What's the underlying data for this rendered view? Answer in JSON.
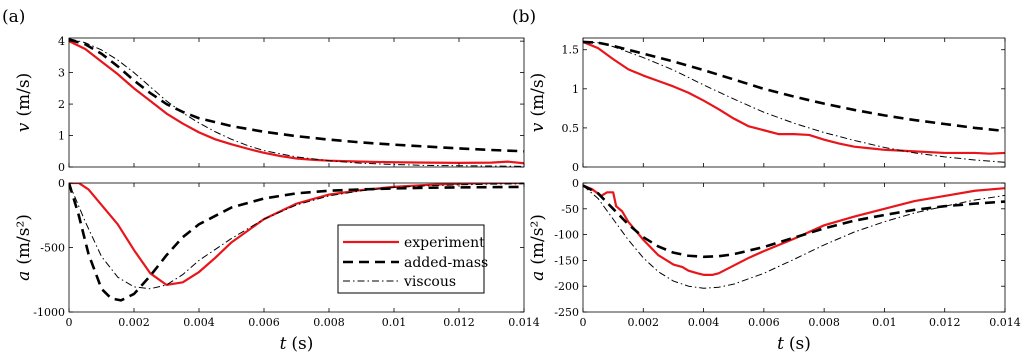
{
  "figure": {
    "panel_labels": [
      "(a)",
      "(b)"
    ],
    "legend": {
      "entries": [
        {
          "label": "experiment",
          "style": "solid",
          "color": "#e8161b"
        },
        {
          "label": "added-mass",
          "style": "dashed",
          "color": "#000000"
        },
        {
          "label": "viscous",
          "style": "dashdot",
          "color": "#000000"
        }
      ],
      "placement": "inside bottom-right of panel (a) acceleration plot"
    }
  },
  "chart_data": [
    {
      "id": "a_velocity",
      "panel": "(a)",
      "type": "line",
      "ylabel_var": "v",
      "ylabel_unit": "(m/s)",
      "xlabel_var": "",
      "xlabel_unit": "",
      "xlim": [
        0,
        0.014
      ],
      "ylim": [
        0,
        4.1
      ],
      "xticks": [
        0,
        0.002,
        0.004,
        0.006,
        0.008,
        0.01,
        0.012,
        0.014
      ],
      "xticklabels": [],
      "yticks": [
        0,
        1,
        2,
        3,
        4
      ],
      "yticklabels": [
        "0",
        "1",
        "2",
        "3",
        "4"
      ],
      "grid": false,
      "series": [
        {
          "name": "experiment",
          "color": "#e8161b",
          "style": "solid",
          "x": [
            0,
            0.0005,
            0.001,
            0.0015,
            0.002,
            0.0025,
            0.003,
            0.0035,
            0.004,
            0.0045,
            0.005,
            0.0055,
            0.006,
            0.0065,
            0.007,
            0.0075,
            0.008,
            0.009,
            0.01,
            0.011,
            0.012,
            0.013,
            0.0135,
            0.014
          ],
          "y": [
            4.0,
            3.75,
            3.35,
            2.95,
            2.5,
            2.1,
            1.7,
            1.38,
            1.1,
            0.88,
            0.72,
            0.58,
            0.45,
            0.35,
            0.27,
            0.23,
            0.2,
            0.17,
            0.15,
            0.14,
            0.13,
            0.14,
            0.17,
            0.12
          ]
        },
        {
          "name": "added-mass",
          "color": "#000000",
          "style": "dashed",
          "x": [
            0,
            0.0005,
            0.001,
            0.0015,
            0.002,
            0.0025,
            0.003,
            0.0035,
            0.004,
            0.005,
            0.006,
            0.007,
            0.008,
            0.009,
            0.01,
            0.011,
            0.012,
            0.013,
            0.014
          ],
          "y": [
            4.05,
            3.9,
            3.6,
            3.2,
            2.75,
            2.35,
            2.0,
            1.75,
            1.55,
            1.3,
            1.12,
            0.98,
            0.87,
            0.78,
            0.71,
            0.65,
            0.59,
            0.54,
            0.5
          ]
        },
        {
          "name": "viscous",
          "color": "#000000",
          "style": "dashdot",
          "x": [
            0,
            0.0005,
            0.001,
            0.0015,
            0.002,
            0.0025,
            0.003,
            0.0035,
            0.004,
            0.0045,
            0.005,
            0.0055,
            0.006,
            0.007,
            0.008,
            0.009,
            0.01,
            0.011,
            0.012,
            0.013,
            0.014
          ],
          "y": [
            4.08,
            3.95,
            3.72,
            3.4,
            3.0,
            2.55,
            2.1,
            1.72,
            1.4,
            1.12,
            0.88,
            0.68,
            0.52,
            0.32,
            0.2,
            0.12,
            0.08,
            0.05,
            0.04,
            0.03,
            0.02
          ]
        }
      ]
    },
    {
      "id": "a_acceleration",
      "panel": "(a)",
      "type": "line",
      "ylabel_var": "a",
      "ylabel_unit": "(m/s²)",
      "xlabel_var": "t",
      "xlabel_unit": "(s)",
      "xlim": [
        0,
        0.014
      ],
      "ylim": [
        -1000,
        0
      ],
      "xticks": [
        0,
        0.002,
        0.004,
        0.006,
        0.008,
        0.01,
        0.012,
        0.014
      ],
      "xticklabels": [
        "0",
        "0.002",
        "0.004",
        "0.006",
        "0.008",
        "0.01",
        "0.012",
        "0.014"
      ],
      "yticks": [
        -1000,
        -500,
        0
      ],
      "yticklabels": [
        "-1000",
        "-500",
        "0"
      ],
      "grid": false,
      "series": [
        {
          "name": "experiment",
          "color": "#e8161b",
          "style": "solid",
          "x": [
            0,
            0.0003,
            0.0006,
            0.001,
            0.0015,
            0.002,
            0.0025,
            0.003,
            0.0035,
            0.004,
            0.0045,
            0.005,
            0.006,
            0.007,
            0.008,
            0.009,
            0.01,
            0.011,
            0.012,
            0.013,
            0.014
          ],
          "y": [
            0,
            0,
            -50,
            -170,
            -320,
            -520,
            -700,
            -790,
            -770,
            -690,
            -580,
            -460,
            -280,
            -160,
            -90,
            -55,
            -30,
            -15,
            -5,
            0,
            0
          ]
        },
        {
          "name": "added-mass",
          "color": "#000000",
          "style": "dashed",
          "x": [
            0,
            0.0003,
            0.0006,
            0.001,
            0.0013,
            0.0016,
            0.002,
            0.0025,
            0.003,
            0.0035,
            0.004,
            0.005,
            0.006,
            0.007,
            0.008,
            0.009,
            0.01,
            0.011,
            0.012,
            0.013,
            0.014
          ],
          "y": [
            0,
            -250,
            -550,
            -820,
            -895,
            -910,
            -860,
            -720,
            -560,
            -420,
            -320,
            -190,
            -120,
            -80,
            -60,
            -50,
            -42,
            -37,
            -34,
            -32,
            -30
          ]
        },
        {
          "name": "viscous",
          "color": "#000000",
          "style": "dashdot",
          "x": [
            0,
            0.0005,
            0.001,
            0.0015,
            0.002,
            0.0025,
            0.003,
            0.0035,
            0.004,
            0.005,
            0.006,
            0.007,
            0.008,
            0.009,
            0.01,
            0.011,
            0.012,
            0.013,
            0.014
          ],
          "y": [
            0,
            -300,
            -570,
            -730,
            -805,
            -820,
            -790,
            -710,
            -600,
            -430,
            -280,
            -170,
            -100,
            -60,
            -35,
            -22,
            -14,
            -9,
            -6
          ]
        }
      ]
    },
    {
      "id": "b_velocity",
      "panel": "(b)",
      "type": "line",
      "ylabel_var": "v",
      "ylabel_unit": "(m/s)",
      "xlabel_var": "",
      "xlabel_unit": "",
      "xlim": [
        0,
        0.014
      ],
      "ylim": [
        0,
        1.65
      ],
      "xticks": [
        0,
        0.002,
        0.004,
        0.006,
        0.008,
        0.01,
        0.012,
        0.014
      ],
      "xticklabels": [],
      "yticks": [
        0,
        0.5,
        1,
        1.5
      ],
      "yticklabels": [
        "0",
        "0.5",
        "1",
        "1.5"
      ],
      "grid": false,
      "series": [
        {
          "name": "experiment",
          "color": "#e8161b",
          "style": "solid",
          "x": [
            0,
            0.0005,
            0.001,
            0.0015,
            0.002,
            0.0025,
            0.003,
            0.0035,
            0.004,
            0.0045,
            0.005,
            0.0055,
            0.006,
            0.0065,
            0.007,
            0.0075,
            0.008,
            0.0085,
            0.009,
            0.0095,
            0.01,
            0.011,
            0.012,
            0.013,
            0.0135,
            0.014
          ],
          "y": [
            1.6,
            1.52,
            1.38,
            1.25,
            1.17,
            1.1,
            1.03,
            0.95,
            0.85,
            0.74,
            0.62,
            0.52,
            0.47,
            0.42,
            0.42,
            0.41,
            0.35,
            0.3,
            0.26,
            0.24,
            0.22,
            0.2,
            0.18,
            0.18,
            0.17,
            0.18
          ]
        },
        {
          "name": "added-mass",
          "color": "#000000",
          "style": "dashed",
          "x": [
            0,
            0.0005,
            0.001,
            0.0015,
            0.002,
            0.003,
            0.004,
            0.005,
            0.006,
            0.007,
            0.008,
            0.009,
            0.01,
            0.011,
            0.012,
            0.013,
            0.014
          ],
          "y": [
            1.6,
            1.59,
            1.55,
            1.5,
            1.45,
            1.35,
            1.24,
            1.12,
            1.0,
            0.9,
            0.81,
            0.73,
            0.66,
            0.6,
            0.55,
            0.5,
            0.46
          ]
        },
        {
          "name": "viscous",
          "color": "#000000",
          "style": "dashdot",
          "x": [
            0,
            0.0005,
            0.001,
            0.0015,
            0.002,
            0.003,
            0.004,
            0.005,
            0.006,
            0.007,
            0.008,
            0.009,
            0.01,
            0.011,
            0.012,
            0.013,
            0.014
          ],
          "y": [
            1.6,
            1.59,
            1.54,
            1.47,
            1.4,
            1.24,
            1.05,
            0.87,
            0.7,
            0.56,
            0.44,
            0.34,
            0.25,
            0.18,
            0.13,
            0.09,
            0.06
          ]
        }
      ]
    },
    {
      "id": "b_acceleration",
      "panel": "(b)",
      "type": "line",
      "ylabel_var": "a",
      "ylabel_unit": "(m/s²)",
      "xlabel_var": "t",
      "xlabel_unit": "(s)",
      "xlim": [
        0,
        0.014
      ],
      "ylim": [
        -250,
        0
      ],
      "xticks": [
        0,
        0.002,
        0.004,
        0.006,
        0.008,
        0.01,
        0.012,
        0.014
      ],
      "xticklabels": [
        "0",
        "0.002",
        "0.004",
        "0.006",
        "0.008",
        "0.01",
        "0.012",
        "0.014"
      ],
      "yticks": [
        -250,
        -200,
        -150,
        -100,
        -50,
        0
      ],
      "yticklabels": [
        "-250",
        "-200",
        "-150",
        "-100",
        "-50",
        "0"
      ],
      "grid": false,
      "series": [
        {
          "name": "experiment",
          "color": "#e8161b",
          "style": "solid",
          "x": [
            0,
            0.0003,
            0.0006,
            0.0008,
            0.001,
            0.0011,
            0.0013,
            0.0015,
            0.002,
            0.0025,
            0.003,
            0.0033,
            0.0035,
            0.0038,
            0.004,
            0.0043,
            0.0045,
            0.005,
            0.0055,
            0.006,
            0.007,
            0.008,
            0.009,
            0.01,
            0.011,
            0.012,
            0.013,
            0.014
          ],
          "y": [
            -5,
            -12,
            -25,
            -18,
            -18,
            -45,
            -55,
            -75,
            -110,
            -140,
            -158,
            -163,
            -170,
            -175,
            -178,
            -178,
            -175,
            -160,
            -145,
            -132,
            -108,
            -82,
            -65,
            -50,
            -35,
            -25,
            -15,
            -10
          ]
        },
        {
          "name": "added-mass",
          "color": "#000000",
          "style": "dashed",
          "x": [
            0,
            0.0005,
            0.001,
            0.0015,
            0.002,
            0.0025,
            0.003,
            0.0035,
            0.004,
            0.0045,
            0.005,
            0.006,
            0.007,
            0.008,
            0.009,
            0.01,
            0.011,
            0.012,
            0.013,
            0.014
          ],
          "y": [
            -5,
            -20,
            -50,
            -80,
            -105,
            -123,
            -135,
            -141,
            -143,
            -142,
            -138,
            -124,
            -106,
            -88,
            -73,
            -62,
            -52,
            -45,
            -40,
            -36
          ]
        },
        {
          "name": "viscous",
          "color": "#000000",
          "style": "dashdot",
          "x": [
            0,
            0.0005,
            0.001,
            0.0015,
            0.002,
            0.0025,
            0.003,
            0.0035,
            0.004,
            0.0045,
            0.005,
            0.006,
            0.007,
            0.008,
            0.009,
            0.01,
            0.011,
            0.012,
            0.013,
            0.014
          ],
          "y": [
            -5,
            -30,
            -70,
            -110,
            -145,
            -172,
            -190,
            -200,
            -204,
            -202,
            -196,
            -175,
            -148,
            -120,
            -95,
            -75,
            -58,
            -45,
            -33,
            -24
          ]
        }
      ]
    }
  ]
}
